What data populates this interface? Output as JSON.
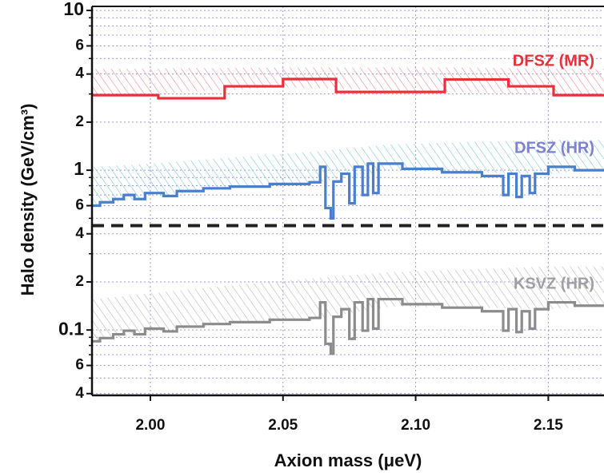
{
  "chart_data": {
    "type": "line",
    "xlabel": "Axion mass (μeV)",
    "ylabel": "Halo density (GeV/cm³)",
    "xlim": [
      1.978,
      2.171
    ],
    "ylim": [
      0.039,
      10.6
    ],
    "log_y": true,
    "grid": true,
    "xticks": [
      {
        "value": 2.0,
        "label": "2.00"
      },
      {
        "value": 2.05,
        "label": "2.05"
      },
      {
        "value": 2.1,
        "label": "2.10"
      },
      {
        "value": 2.15,
        "label": "2.15"
      }
    ],
    "yticks": [
      10,
      {
        "value": 6,
        "label": "6"
      },
      4,
      2,
      1,
      {
        "value": 0.6,
        "label": "6"
      },
      {
        "value": 0.4,
        "label": "4"
      },
      {
        "value": 0.2,
        "label": "2"
      },
      0.1,
      {
        "value": 0.06,
        "label": "6"
      },
      {
        "value": 0.04,
        "label": "4"
      }
    ],
    "yminorticks": [
      0.05,
      0.07,
      0.08,
      0.09,
      0.3,
      0.5,
      0.7,
      0.8,
      0.9,
      3,
      5,
      7,
      8,
      9
    ],
    "reference_line": {
      "value": 0.45,
      "color": "#222222"
    },
    "series": [
      {
        "name": "DFSZ (MR)",
        "color": "#e8303a",
        "label_color": "#e8303a",
        "band_color": "#f08a95",
        "x": [
          1.978,
          2.003,
          2.003,
          2.028,
          2.028,
          2.05,
          2.05,
          2.07,
          2.07,
          2.111,
          2.111,
          2.135,
          2.135,
          2.152,
          2.152,
          2.171
        ],
        "values": [
          2.95,
          2.95,
          2.82,
          2.82,
          3.35,
          3.35,
          3.72,
          3.72,
          3.09,
          3.09,
          3.7,
          3.7,
          3.35,
          3.35,
          2.95,
          2.95
        ],
        "band": {
          "x": [
            1.978,
            2.05,
            2.11,
            2.171
          ],
          "lower": [
            2.9,
            3.3,
            3.1,
            2.9
          ],
          "upper": [
            4.3,
            4.4,
            4.4,
            4.3
          ]
        }
      },
      {
        "name": "DFSZ (HR)",
        "color": "#4a7fcc",
        "label_color": "#8080cc",
        "band_color": "#7cc8dc",
        "x": [
          1.978,
          1.981,
          1.981,
          1.986,
          1.986,
          1.99,
          1.99,
          1.994,
          1.994,
          1.998,
          1.998,
          2.005,
          2.005,
          2.01,
          2.01,
          2.02,
          2.02,
          2.03,
          2.03,
          2.045,
          2.045,
          2.06,
          2.06,
          2.064,
          2.064,
          2.066,
          2.066,
          2.068,
          2.068,
          2.069,
          2.069,
          2.072,
          2.072,
          2.075,
          2.075,
          2.077,
          2.077,
          2.08,
          2.08,
          2.082,
          2.082,
          2.084,
          2.084,
          2.086,
          2.086,
          2.095,
          2.095,
          2.11,
          2.11,
          2.125,
          2.125,
          2.133,
          2.133,
          2.135,
          2.135,
          2.138,
          2.138,
          2.14,
          2.14,
          2.143,
          2.143,
          2.145,
          2.145,
          2.15,
          2.15,
          2.16,
          2.16,
          2.171
        ],
        "values": [
          0.6,
          0.6,
          0.63,
          0.63,
          0.66,
          0.66,
          0.7,
          0.7,
          0.66,
          0.66,
          0.72,
          0.72,
          0.69,
          0.69,
          0.74,
          0.74,
          0.77,
          0.77,
          0.79,
          0.79,
          0.82,
          0.82,
          0.84,
          0.84,
          1.05,
          1.05,
          0.58,
          0.58,
          0.5,
          0.5,
          0.85,
          0.85,
          0.95,
          0.95,
          0.62,
          0.62,
          1.05,
          1.05,
          0.7,
          0.7,
          1.1,
          1.1,
          0.72,
          0.72,
          1.1,
          1.1,
          1.02,
          1.02,
          0.97,
          0.97,
          0.92,
          0.92,
          0.7,
          0.7,
          0.95,
          0.95,
          0.68,
          0.68,
          0.92,
          0.92,
          0.72,
          0.72,
          0.95,
          0.95,
          1.05,
          1.05,
          1.0,
          1.0
        ],
        "band": {
          "x": [
            1.978,
            2.0,
            2.03,
            2.06,
            2.09,
            2.12,
            2.15,
            2.171
          ],
          "lower": [
            0.6,
            0.68,
            0.77,
            0.82,
            1.0,
            0.97,
            0.95,
            1.0
          ],
          "upper": [
            1.05,
            1.1,
            1.2,
            1.3,
            1.45,
            1.5,
            1.55,
            1.55
          ]
        }
      },
      {
        "name": "KSVZ (HR)",
        "color": "#8c8c8c",
        "label_color": "#a0a0a0",
        "band_color": "#b8b8b8",
        "x": [
          1.978,
          1.981,
          1.981,
          1.986,
          1.986,
          1.99,
          1.99,
          1.994,
          1.994,
          1.998,
          1.998,
          2.005,
          2.005,
          2.01,
          2.01,
          2.02,
          2.02,
          2.03,
          2.03,
          2.045,
          2.045,
          2.06,
          2.06,
          2.064,
          2.064,
          2.066,
          2.066,
          2.068,
          2.068,
          2.069,
          2.069,
          2.072,
          2.072,
          2.075,
          2.075,
          2.077,
          2.077,
          2.08,
          2.08,
          2.082,
          2.082,
          2.084,
          2.084,
          2.086,
          2.086,
          2.095,
          2.095,
          2.11,
          2.11,
          2.125,
          2.125,
          2.133,
          2.133,
          2.135,
          2.135,
          2.138,
          2.138,
          2.14,
          2.14,
          2.143,
          2.143,
          2.145,
          2.145,
          2.15,
          2.15,
          2.16,
          2.16,
          2.171
        ],
        "values": [
          0.085,
          0.085,
          0.089,
          0.089,
          0.094,
          0.094,
          0.099,
          0.099,
          0.094,
          0.094,
          0.102,
          0.102,
          0.098,
          0.098,
          0.105,
          0.105,
          0.109,
          0.109,
          0.112,
          0.112,
          0.116,
          0.116,
          0.119,
          0.119,
          0.149,
          0.149,
          0.082,
          0.082,
          0.071,
          0.071,
          0.121,
          0.121,
          0.135,
          0.135,
          0.088,
          0.088,
          0.149,
          0.149,
          0.099,
          0.099,
          0.156,
          0.156,
          0.102,
          0.102,
          0.156,
          0.156,
          0.145,
          0.145,
          0.138,
          0.138,
          0.131,
          0.131,
          0.099,
          0.099,
          0.135,
          0.135,
          0.097,
          0.097,
          0.131,
          0.131,
          0.102,
          0.102,
          0.135,
          0.135,
          0.149,
          0.149,
          0.142,
          0.142
        ],
        "band": {
          "x": [
            1.978,
            2.0,
            2.03,
            2.06,
            2.09,
            2.12,
            2.15,
            2.171
          ],
          "lower": [
            0.085,
            0.097,
            0.109,
            0.116,
            0.14,
            0.138,
            0.135,
            0.142
          ],
          "upper": [
            0.155,
            0.17,
            0.19,
            0.21,
            0.23,
            0.24,
            0.25,
            0.25
          ]
        }
      }
    ]
  }
}
